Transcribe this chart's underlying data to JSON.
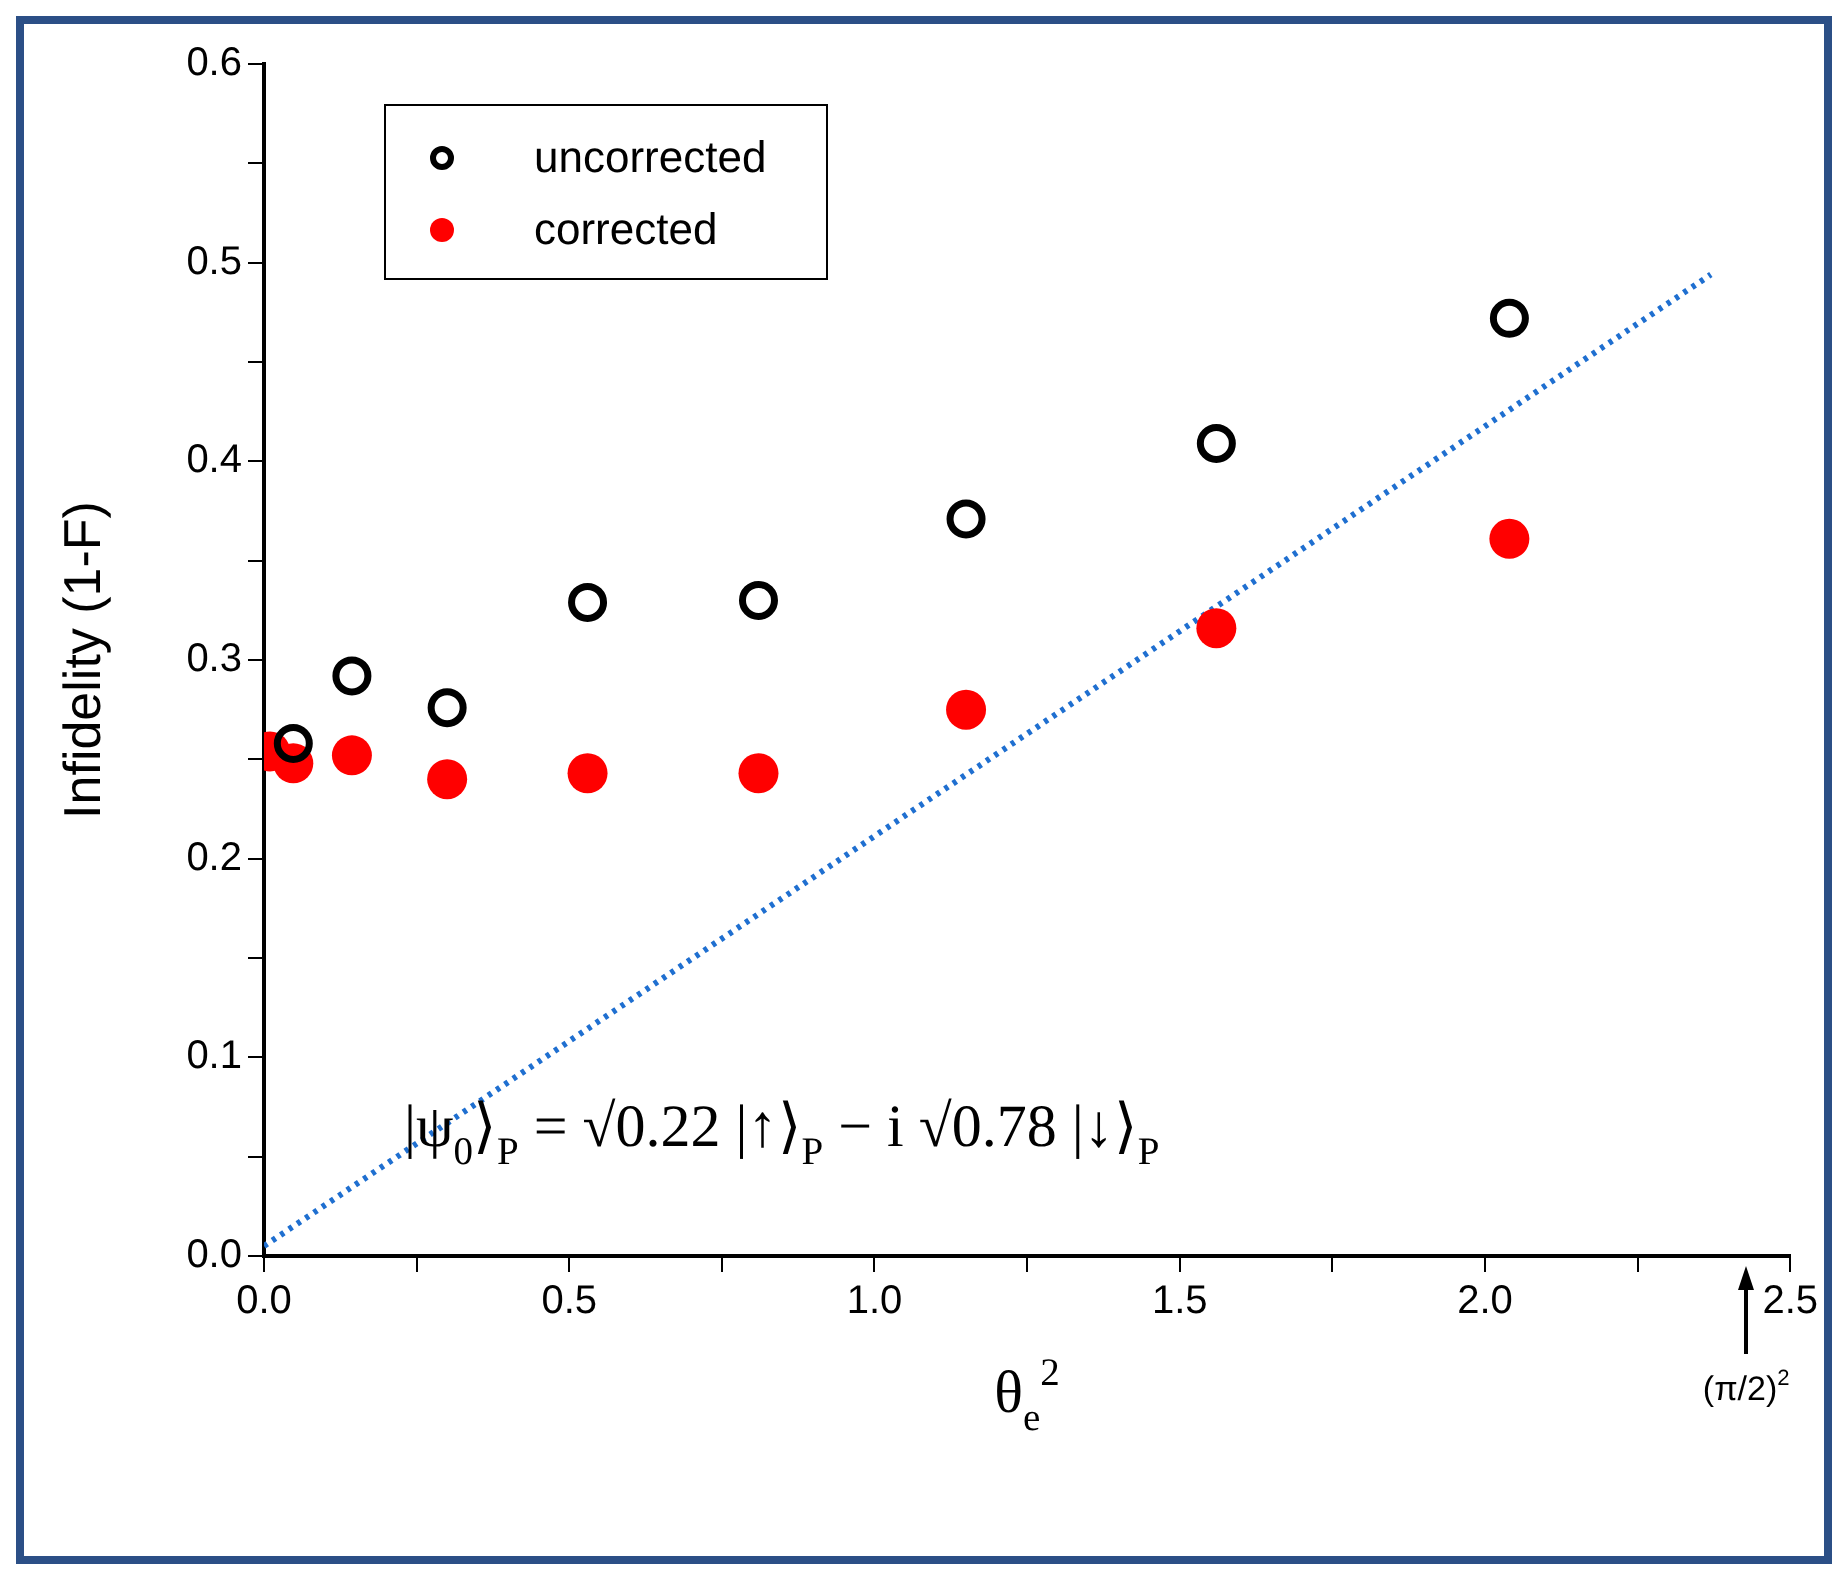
{
  "chart_data": {
    "type": "scatter",
    "xlabel": "θ$_{e}$$^{2}$",
    "ylabel": "Infidelity (1-F)",
    "xlim": [
      0,
      2.5
    ],
    "ylim": [
      0,
      0.6
    ],
    "xticks": [
      {
        "value": 0,
        "label": "0.0"
      },
      {
        "value": 0.25,
        "label": null
      },
      {
        "value": 0.5,
        "label": "0.5"
      },
      {
        "value": 0.75,
        "label": null
      },
      {
        "value": 1,
        "label": "1.0"
      },
      {
        "value": 1.25,
        "label": null
      },
      {
        "value": 1.5,
        "label": "1.5"
      },
      {
        "value": 1.75,
        "label": null
      },
      {
        "value": 2,
        "label": "2.0"
      },
      {
        "value": 2.25,
        "label": null
      },
      {
        "value": 2.5,
        "label": "2.5"
      }
    ],
    "yticks": [
      {
        "value": 0,
        "label": "0.0"
      },
      {
        "value": 0.05,
        "label": null
      },
      {
        "value": 0.1,
        "label": "0.1"
      },
      {
        "value": 0.15,
        "label": null
      },
      {
        "value": 0.2,
        "label": "0.2"
      },
      {
        "value": 0.25,
        "label": null
      },
      {
        "value": 0.3,
        "label": "0.3"
      },
      {
        "value": 0.35,
        "label": null
      },
      {
        "value": 0.4,
        "label": "0.4"
      },
      {
        "value": 0.45,
        "label": null
      },
      {
        "value": 0.5,
        "label": "0.5"
      },
      {
        "value": 0.55,
        "label": null
      },
      {
        "value": 0.6,
        "label": "0.6"
      }
    ],
    "grid": false,
    "legend": "top left",
    "marker": "circle",
    "series": [
      {
        "name": "uncorrected",
        "color": "#000000",
        "x": [
          0.048,
          0.144,
          0.3,
          0.53,
          0.81,
          1.15,
          1.56,
          2.04
        ],
        "values": [
          0.258,
          0.292,
          0.276,
          0.329,
          0.33,
          0.371,
          0.409,
          0.472
        ]
      },
      {
        "name": "corrected",
        "color": "#ff0000",
        "x": [
          0.01,
          0.048,
          0.144,
          0.3,
          0.53,
          0.81,
          1.15,
          1.56,
          2.04
        ],
        "values": [
          0.254,
          0.248,
          0.252,
          0.24,
          0.243,
          0.243,
          0.275,
          0.316,
          0.361
        ]
      },
      {
        "type": "line",
        "color": "#1f6fd0",
        "line_style": "dotted",
        "marker": "none",
        "x": [
          0,
          2.37
        ],
        "values": [
          0.005,
          0.494
        ]
      }
    ],
    "annotations": [
      "|ψ$_{0}$⟩$_{P}$ = √0.22 |↑⟩$_{P}$ − i √0.78 |↓⟩$_{P}$",
      "(π/2)$^{2}$"
    ]
  }
}
